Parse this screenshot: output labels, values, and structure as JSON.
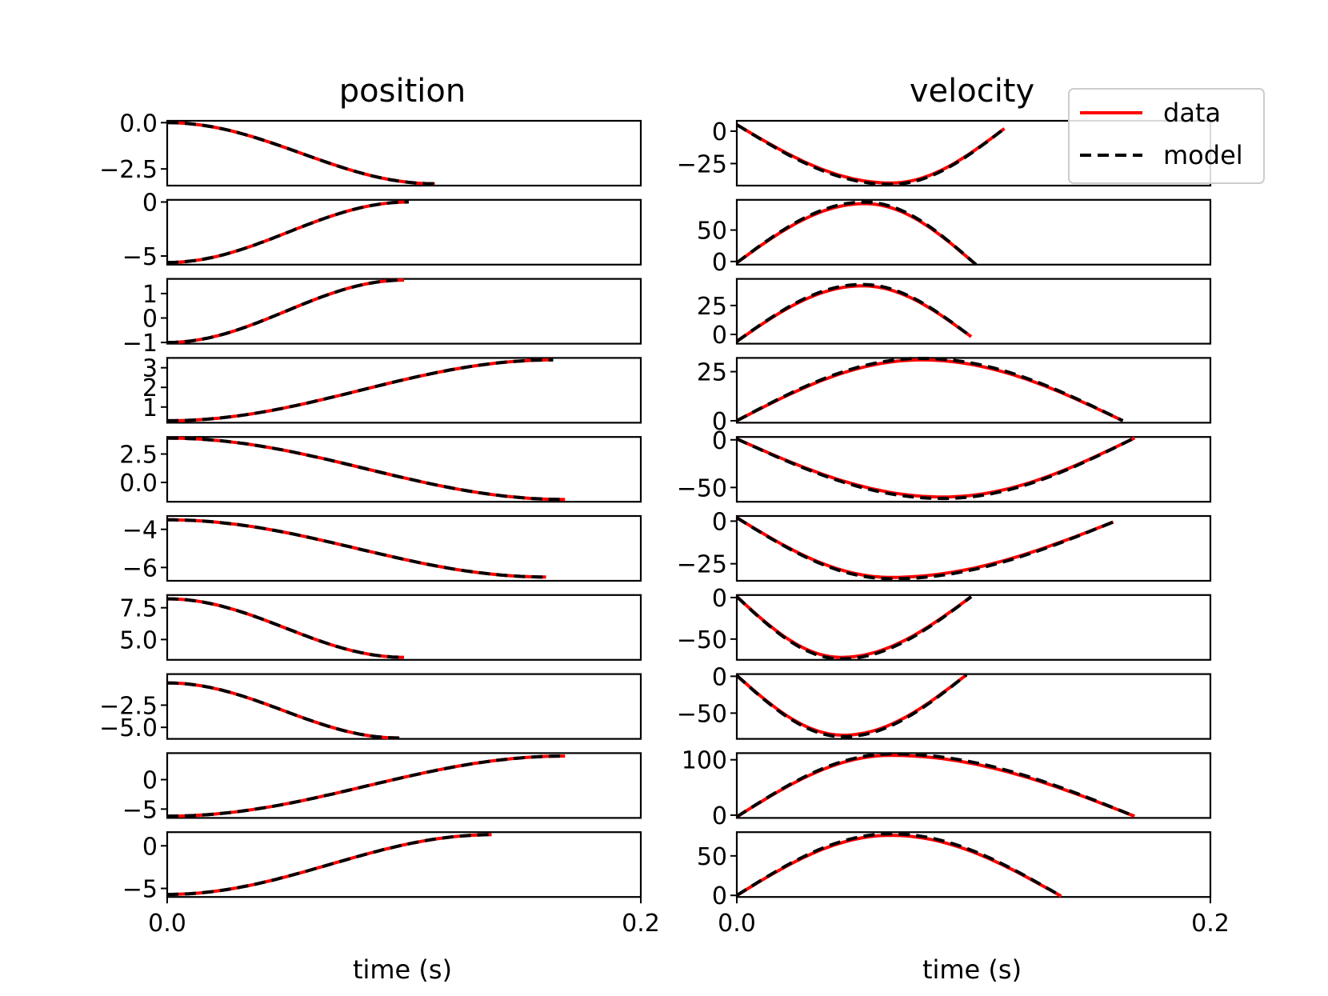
{
  "chart_data": {
    "type": "line",
    "layout": "10 rows x 2 columns of small-multiple line plots sharing the x axis",
    "columns": [
      {
        "title": "position",
        "xlabel": "time (s)"
      },
      {
        "title": "velocity",
        "xlabel": "time (s)"
      }
    ],
    "x_range": [
      0.0,
      0.2
    ],
    "x_ticks": [
      0.0,
      0.2
    ],
    "x_tick_labels": [
      "0.0",
      "0.2"
    ],
    "legend": {
      "placement": "top-right",
      "entries": [
        {
          "label": "data",
          "color": "#ff0000",
          "style": "solid"
        },
        {
          "label": "model",
          "color": "#000000",
          "style": "dashed"
        }
      ]
    },
    "subplots": [
      {
        "row": 0,
        "col": 0,
        "ylim": [
          -3.4,
          0.1
        ],
        "yticks": [
          0.0,
          -2.5
        ],
        "ytick_labels": [
          "0.0",
          "−2.5"
        ],
        "t_end": 0.113,
        "y_start": 0.0,
        "y_end": -3.3,
        "shape": "cos"
      },
      {
        "row": 0,
        "col": 1,
        "ylim": [
          -42,
          8
        ],
        "yticks": [
          0,
          -25
        ],
        "ytick_labels": [
          "0",
          "−25"
        ],
        "t_end": 0.113,
        "y_start": 5,
        "y_end": 2,
        "y_extreme": -40,
        "t_extreme": 0.065,
        "shape": "bump"
      },
      {
        "row": 1,
        "col": 0,
        "ylim": [
          -5.8,
          0.2
        ],
        "yticks": [
          0,
          -5
        ],
        "ytick_labels": [
          "0",
          "−5"
        ],
        "t_end": 0.102,
        "y_start": -5.6,
        "y_end": 0.0,
        "shape": "cos"
      },
      {
        "row": 1,
        "col": 1,
        "ylim": [
          -5,
          98
        ],
        "yticks": [
          50,
          0
        ],
        "ytick_labels": [
          "50",
          "0"
        ],
        "t_end": 0.101,
        "y_start": -2,
        "y_end": -5,
        "y_extreme": 92,
        "t_extreme": 0.054,
        "shape": "bump"
      },
      {
        "row": 2,
        "col": 0,
        "ylim": [
          -1.05,
          1.6
        ],
        "yticks": [
          1,
          0,
          -1
        ],
        "ytick_labels": [
          "1",
          "0",
          "−1"
        ],
        "t_end": 0.1,
        "y_start": -1.0,
        "y_end": 1.55,
        "shape": "cos"
      },
      {
        "row": 2,
        "col": 1,
        "ylim": [
          -8,
          48
        ],
        "yticks": [
          25,
          0
        ],
        "ytick_labels": [
          "25",
          "0"
        ],
        "t_end": 0.099,
        "y_start": -6,
        "y_end": -2,
        "y_extreme": 42,
        "t_extreme": 0.053,
        "shape": "bump"
      },
      {
        "row": 3,
        "col": 0,
        "ylim": [
          0.2,
          3.5
        ],
        "yticks": [
          3,
          2,
          1
        ],
        "ytick_labels": [
          "3",
          "2",
          "1"
        ],
        "t_end": 0.163,
        "y_start": 0.3,
        "y_end": 3.4,
        "shape": "cos"
      },
      {
        "row": 3,
        "col": 1,
        "ylim": [
          -1,
          32
        ],
        "yticks": [
          25,
          0
        ],
        "ytick_labels": [
          "25",
          "0"
        ],
        "t_end": 0.163,
        "y_start": 0,
        "y_end": 0,
        "y_extreme": 31,
        "t_extreme": 0.078,
        "shape": "bump"
      },
      {
        "row": 4,
        "col": 0,
        "ylim": [
          -1.7,
          4.0
        ],
        "yticks": [
          2.5,
          0.0
        ],
        "ytick_labels": [
          "2.5",
          "0.0"
        ],
        "t_end": 0.168,
        "y_start": 3.9,
        "y_end": -1.5,
        "shape": "cos"
      },
      {
        "row": 4,
        "col": 1,
        "ylim": [
          -65,
          3
        ],
        "yticks": [
          0,
          -50
        ],
        "ytick_labels": [
          "0",
          "−50"
        ],
        "t_end": 0.168,
        "y_start": 1,
        "y_end": 2,
        "y_extreme": -60,
        "t_extreme": 0.087,
        "shape": "bump"
      },
      {
        "row": 5,
        "col": 0,
        "ylim": [
          -6.7,
          -3.3
        ],
        "yticks": [
          -4,
          -6
        ],
        "ytick_labels": [
          "−4",
          "−6"
        ],
        "t_end": 0.16,
        "y_start": -3.5,
        "y_end": -6.5,
        "shape": "cos"
      },
      {
        "row": 5,
        "col": 1,
        "ylim": [
          -35,
          3
        ],
        "yticks": [
          0,
          -25
        ],
        "ytick_labels": [
          "0",
          "−25"
        ],
        "t_end": 0.159,
        "y_start": 2,
        "y_end": -0.5,
        "y_extreme": -33,
        "t_extreme": 0.065,
        "shape": "bump"
      },
      {
        "row": 6,
        "col": 0,
        "ylim": [
          3.4,
          8.5
        ],
        "yticks": [
          7.5,
          5.0
        ],
        "ytick_labels": [
          "7.5",
          "5.0"
        ],
        "t_end": 0.1,
        "y_start": 8.2,
        "y_end": 3.6,
        "shape": "cos"
      },
      {
        "row": 6,
        "col": 1,
        "ylim": [
          -75,
          3
        ],
        "yticks": [
          0,
          -50
        ],
        "ytick_labels": [
          "0",
          "−50"
        ],
        "t_end": 0.099,
        "y_start": 1,
        "y_end": 1,
        "y_extreme": -72,
        "t_extreme": 0.044,
        "shape": "bump"
      },
      {
        "row": 7,
        "col": 0,
        "ylim": [
          -6.3,
          1.0
        ],
        "yticks": [
          -2.5,
          -5.0
        ],
        "ytick_labels": [
          "−2.5",
          "−5.0"
        ],
        "t_end": 0.098,
        "y_start": 0.0,
        "y_end": -6.2,
        "shape": "cos"
      },
      {
        "row": 7,
        "col": 1,
        "ylim": [
          -85,
          3
        ],
        "yticks": [
          0,
          -50
        ],
        "ytick_labels": [
          "0",
          "−50"
        ],
        "t_end": 0.097,
        "y_start": 1,
        "y_end": 2,
        "y_extreme": -80,
        "t_extreme": 0.045,
        "shape": "bump"
      },
      {
        "row": 8,
        "col": 0,
        "ylim": [
          -6.5,
          4.5
        ],
        "yticks": [
          0,
          -5
        ],
        "ytick_labels": [
          "0",
          "−5"
        ],
        "t_end": 0.168,
        "y_start": -6.2,
        "y_end": 4.0,
        "shape": "cos"
      },
      {
        "row": 8,
        "col": 1,
        "ylim": [
          -5,
          112
        ],
        "yticks": [
          100,
          0
        ],
        "ytick_labels": [
          "100",
          "0"
        ],
        "t_end": 0.168,
        "y_start": -3,
        "y_end": -2,
        "y_extreme": 108,
        "t_extreme": 0.065,
        "shape": "bump"
      },
      {
        "row": 9,
        "col": 0,
        "ylim": [
          -6.0,
          1.6
        ],
        "yticks": [
          0,
          -5
        ],
        "ytick_labels": [
          "0",
          "−5"
        ],
        "t_end": 0.137,
        "y_start": -5.7,
        "y_end": 1.3,
        "shape": "cos"
      },
      {
        "row": 9,
        "col": 1,
        "ylim": [
          -2,
          80
        ],
        "yticks": [
          50,
          0
        ],
        "ytick_labels": [
          "50",
          "0"
        ],
        "t_end": 0.137,
        "y_start": 0,
        "y_end": -1,
        "y_extreme": 76,
        "t_extreme": 0.065,
        "shape": "bump"
      }
    ]
  }
}
